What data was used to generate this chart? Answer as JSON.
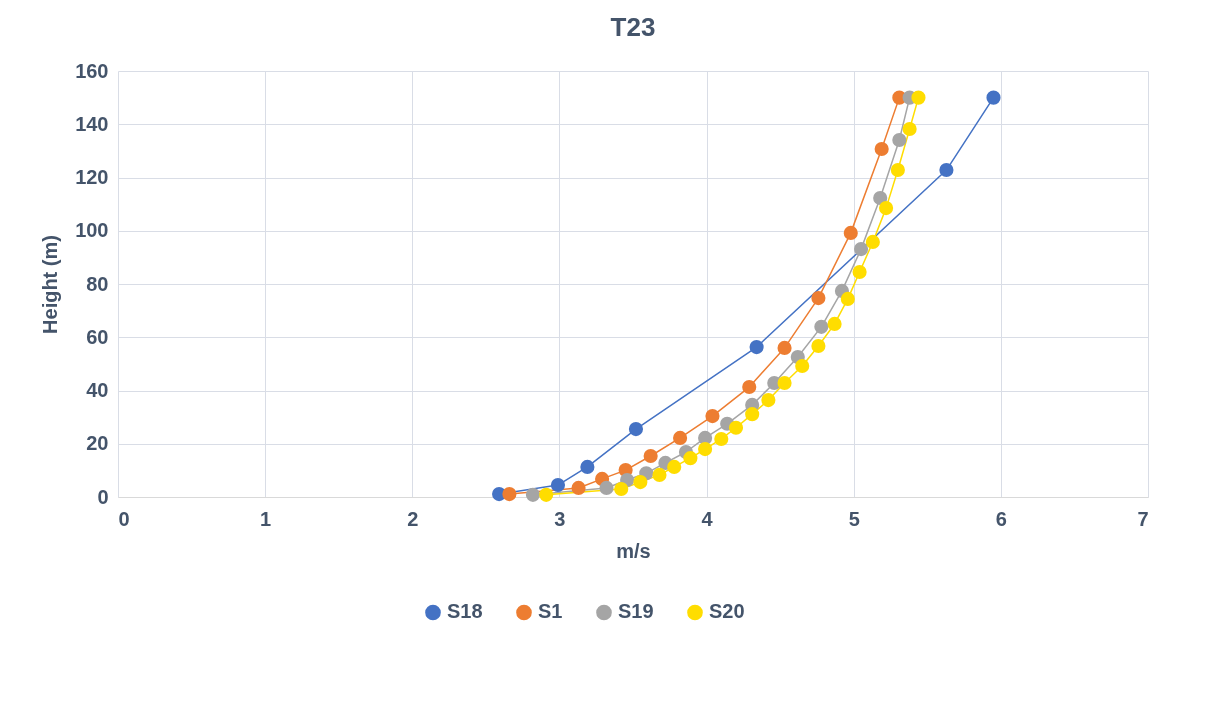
{
  "chart_data": {
    "type": "line",
    "title": "T23",
    "xlabel": "m/s",
    "ylabel": "Height (m)",
    "xlim": [
      0,
      7
    ],
    "xticks": [
      0,
      1,
      2,
      3,
      4,
      5,
      6,
      7
    ],
    "ylim": [
      0,
      160
    ],
    "yticks": [
      0,
      20,
      40,
      60,
      80,
      100,
      120,
      140,
      160
    ],
    "grid": true,
    "legend": "bottom",
    "marker": "circle",
    "line_style": "solid",
    "series": [
      {
        "name": "S18",
        "color": "#4472c4",
        "x": [
          2.59,
          2.99,
          3.19,
          3.52,
          4.34,
          5.63,
          5.95
        ],
        "values": [
          1.1,
          4.5,
          11.3,
          25.5,
          56.3,
          122.8,
          150
        ]
      },
      {
        "name": "S1",
        "color": "#ed7d31",
        "x": [
          2.66,
          3.13,
          3.29,
          3.45,
          3.62,
          3.82,
          4.04,
          4.29,
          4.53,
          4.76,
          4.98,
          5.19,
          5.31
        ],
        "values": [
          1.1,
          3.4,
          6.8,
          10.1,
          15.4,
          22.2,
          30.4,
          41.3,
          56.0,
          74.7,
          99.2,
          130.7,
          150
        ]
      },
      {
        "name": "S19",
        "color": "#a5a5a5",
        "x": [
          2.82,
          3.32,
          3.46,
          3.59,
          3.72,
          3.86,
          3.99,
          4.14,
          4.31,
          4.46,
          4.62,
          4.78,
          4.92,
          5.05,
          5.18,
          5.31,
          5.38
        ],
        "values": [
          0.8,
          3.4,
          6.4,
          8.9,
          12.8,
          16.9,
          22.2,
          27.5,
          34.6,
          42.8,
          52.6,
          63.9,
          77.4,
          93.1,
          112.3,
          134.1,
          150
        ]
      },
      {
        "name": "S20",
        "color": "#ffdd00",
        "x": [
          2.91,
          3.42,
          3.55,
          3.68,
          3.78,
          3.89,
          3.99,
          4.1,
          4.2,
          4.31,
          4.42,
          4.53,
          4.65,
          4.76,
          4.87,
          4.96,
          5.04,
          5.13,
          5.22,
          5.3,
          5.38,
          5.44
        ],
        "values": [
          0.8,
          3.0,
          5.6,
          8.3,
          11.3,
          14.6,
          18.0,
          21.8,
          26.0,
          31.1,
          36.4,
          42.8,
          49.2,
          56.7,
          65.0,
          74.4,
          84.5,
          95.8,
          108.5,
          122.8,
          138.2,
          150
        ]
      }
    ]
  }
}
